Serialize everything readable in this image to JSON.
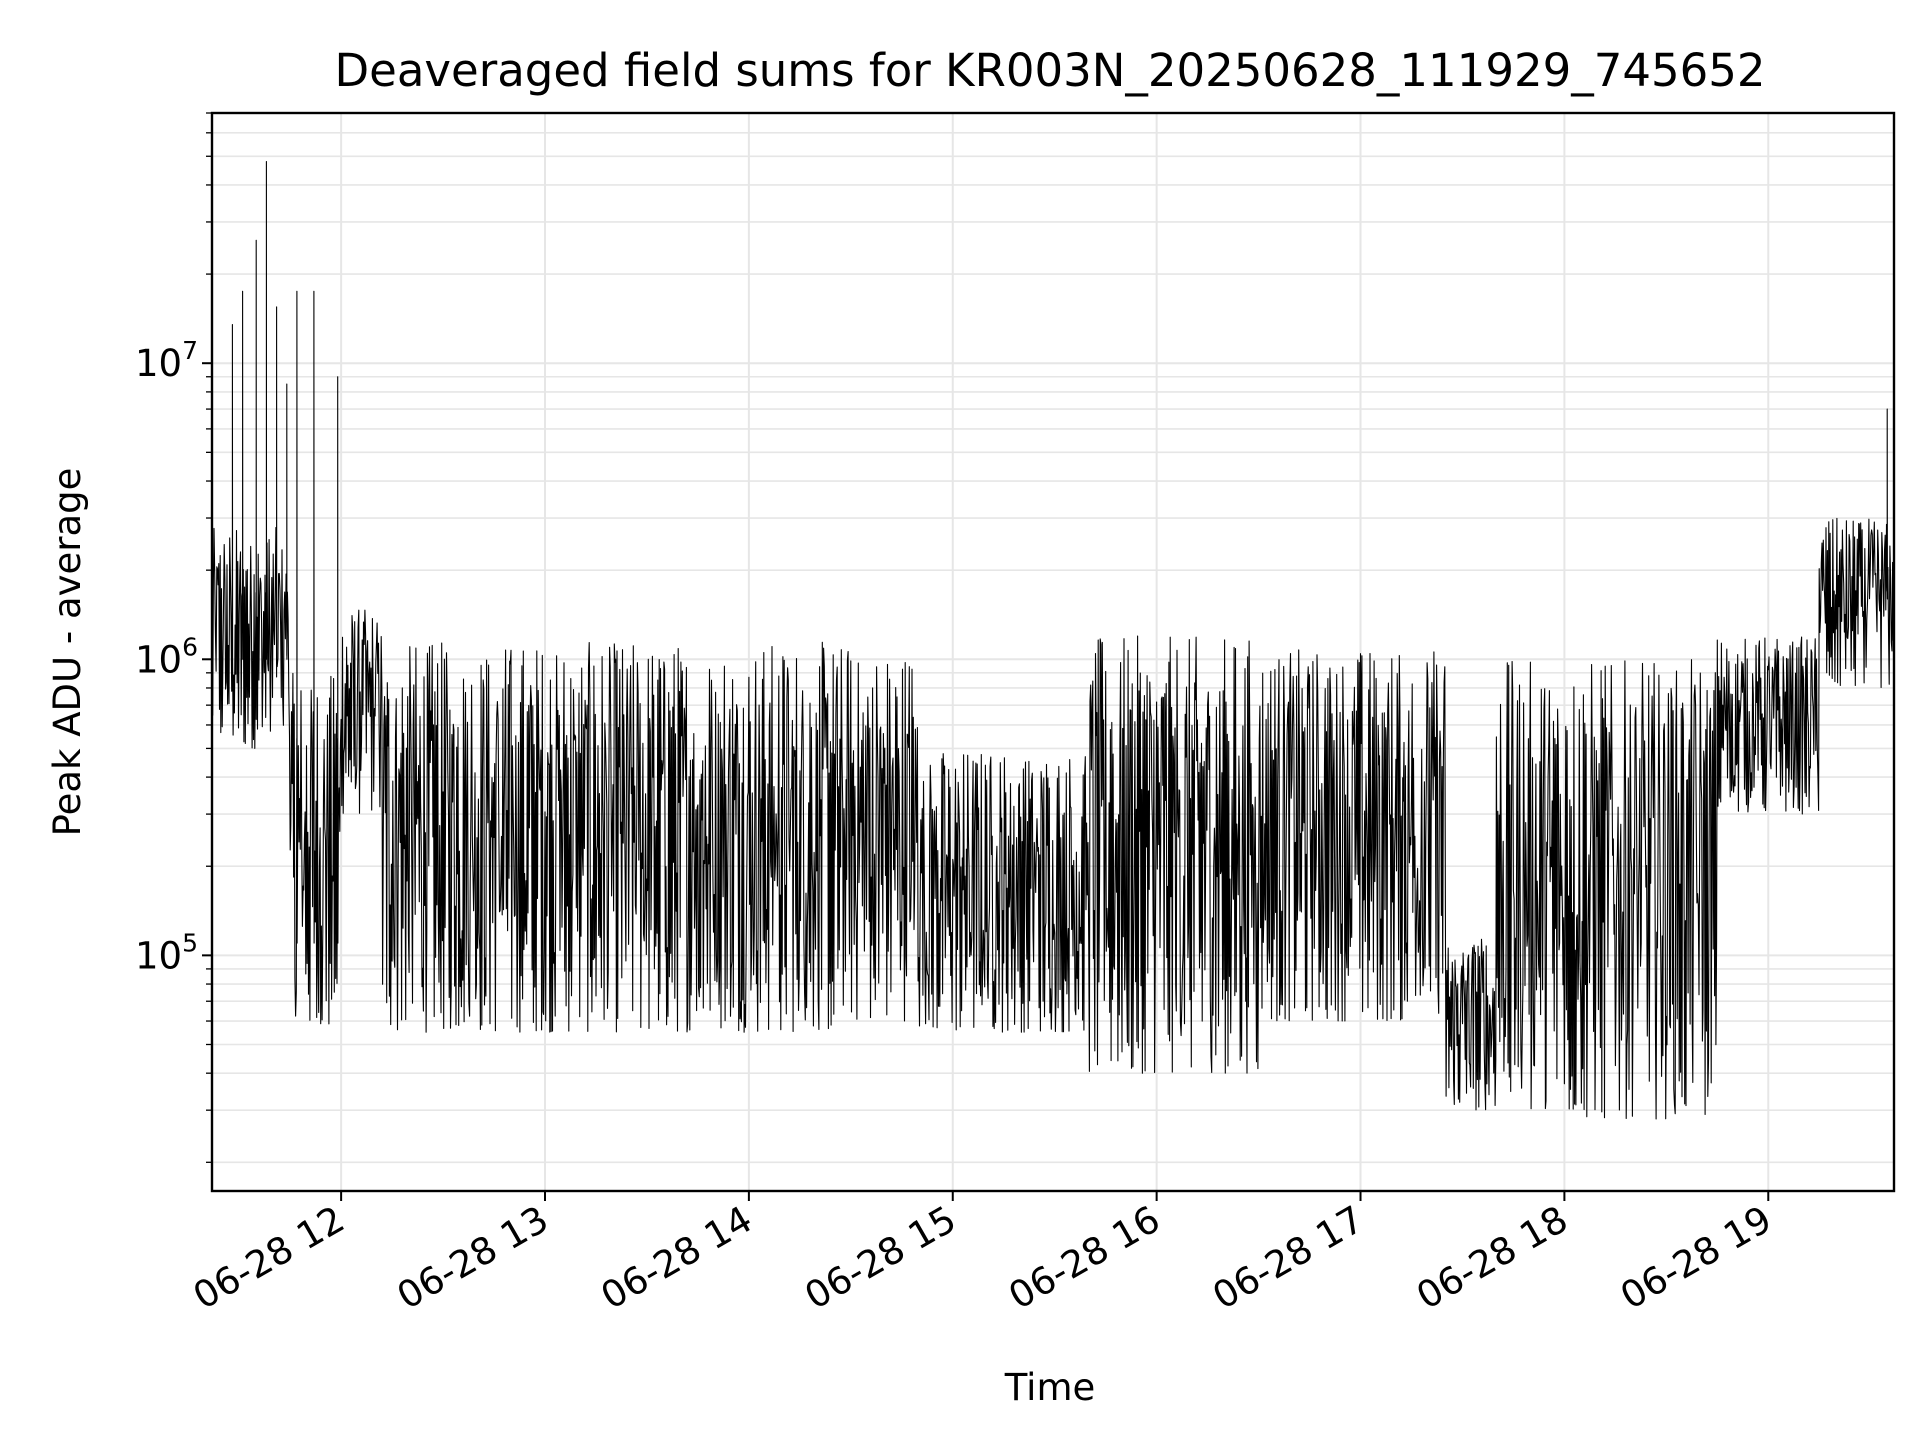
{
  "chart_data": {
    "type": "line",
    "title": "Deaveraged field sums for KR003N_20250628_111929_745652",
    "xlabel": "Time",
    "ylabel": "Peak ADU - average",
    "yscale": "log",
    "ylim": [
      16000,
      70000000
    ],
    "xlim": [
      "2025-06-28 11:22",
      "2025-06-28 19:37"
    ],
    "x_ticks": [
      {
        "value": "2025-06-28 12:00",
        "label": "06-28 12"
      },
      {
        "value": "2025-06-28 13:00",
        "label": "06-28 13"
      },
      {
        "value": "2025-06-28 14:00",
        "label": "06-28 14"
      },
      {
        "value": "2025-06-28 15:00",
        "label": "06-28 15"
      },
      {
        "value": "2025-06-28 16:00",
        "label": "06-28 16"
      },
      {
        "value": "2025-06-28 17:00",
        "label": "06-28 17"
      },
      {
        "value": "2025-06-28 18:00",
        "label": "06-28 18"
      },
      {
        "value": "2025-06-28 19:00",
        "label": "06-28 19"
      }
    ],
    "y_ticks": [
      {
        "value": 100000,
        "base": "10",
        "exp": "5"
      },
      {
        "value": 1000000,
        "base": "10",
        "exp": "6"
      },
      {
        "value": 10000000,
        "base": "10",
        "exp": "7"
      }
    ],
    "grid": true,
    "line_color": "#000000",
    "series": [
      {
        "segments": [
          {
            "start": "11:22",
            "end": "11:45",
            "low": 500000,
            "high": 2800000,
            "spikes": [
              [
                "11:28",
                13500000
              ],
              [
                "11:31",
                17500000
              ],
              [
                "11:35",
                26000000
              ],
              [
                "11:38",
                48000000
              ],
              [
                "11:41",
                15500000
              ],
              [
                "11:44",
                8500000
              ]
            ]
          },
          {
            "start": "11:45",
            "end": "12:00",
            "low": 55000,
            "high": 900000,
            "spikes": [
              [
                "11:47",
                17500000
              ],
              [
                "11:52",
                17500000
              ],
              [
                "11:59",
                9000000
              ]
            ]
          },
          {
            "start": "12:00",
            "end": "12:12",
            "low": 300000,
            "high": 1500000,
            "spikes": []
          },
          {
            "start": "12:12",
            "end": "14:30",
            "low": 55000,
            "high": 1150000,
            "spikes": []
          },
          {
            "start": "14:30",
            "end": "14:50",
            "low": 60000,
            "high": 1100000,
            "spikes": []
          },
          {
            "start": "14:50",
            "end": "15:40",
            "low": 55000,
            "high": 500000,
            "spikes": []
          },
          {
            "start": "15:40",
            "end": "16:30",
            "low": 40000,
            "high": 1200000,
            "spikes": []
          },
          {
            "start": "16:30",
            "end": "17:25",
            "low": 60000,
            "high": 1100000,
            "spikes": []
          },
          {
            "start": "17:25",
            "end": "17:40",
            "low": 30000,
            "high": 120000,
            "spikes": []
          },
          {
            "start": "17:40",
            "end": "18:45",
            "low": 28000,
            "high": 1000000,
            "spikes": []
          },
          {
            "start": "18:45",
            "end": "19:15",
            "low": 300000,
            "high": 1200000,
            "spikes": []
          },
          {
            "start": "19:15",
            "end": "19:37",
            "low": 800000,
            "high": 3000000,
            "spikes": [
              [
                "19:35",
                7000000
              ]
            ]
          }
        ]
      }
    ]
  }
}
